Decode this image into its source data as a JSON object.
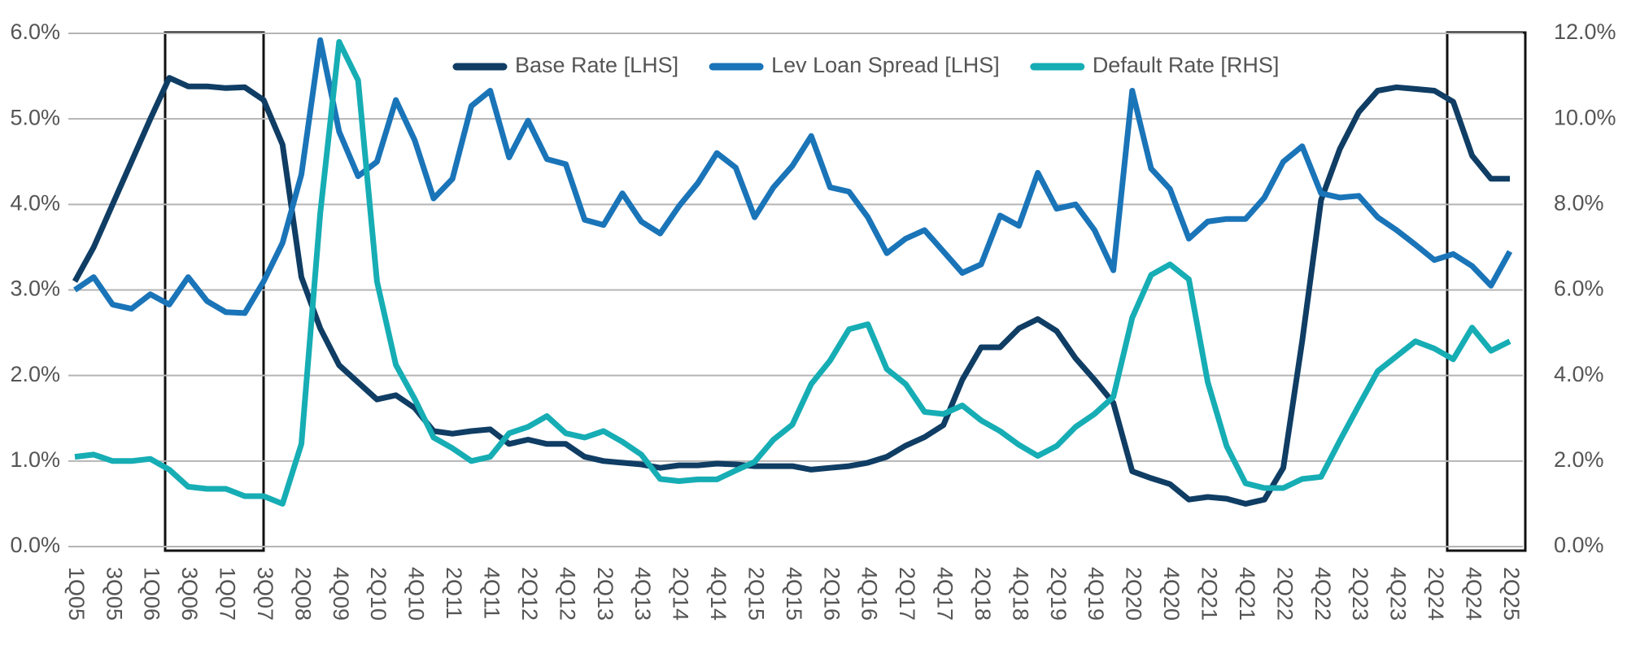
{
  "chart_data": {
    "type": "line",
    "categories": [
      "1Q05",
      null,
      "3Q05",
      null,
      "1Q06",
      null,
      "3Q06",
      null,
      "1Q07",
      null,
      "3Q07",
      null,
      "2Q08",
      null,
      "4Q09",
      null,
      "2Q10",
      null,
      "4Q10",
      null,
      "2Q11",
      null,
      "4Q11",
      null,
      "2Q12",
      null,
      "4Q12",
      null,
      "2Q13",
      null,
      "4Q13",
      null,
      "2Q14",
      null,
      "4Q14",
      null,
      "2Q15",
      null,
      "4Q15",
      null,
      "2Q16",
      null,
      "4Q16",
      null,
      "2Q17",
      null,
      "4Q17",
      null,
      "2Q18",
      null,
      "4Q18",
      null,
      "2Q19",
      null,
      "4Q19",
      null,
      "2Q20",
      null,
      "4Q20",
      null,
      "2Q21",
      null,
      "4Q21",
      null,
      "2Q22",
      null,
      "4Q22",
      null,
      "2Q23",
      null,
      "4Q23",
      null,
      "2Q24",
      null,
      "4Q24",
      null,
      "2Q25"
    ],
    "series": [
      {
        "name": "Base Rate [LHS]",
        "color": "#0f3d64",
        "values": [
          3.1,
          3.5,
          4.0,
          4.5,
          5.0,
          5.48,
          5.38,
          5.38,
          5.36,
          5.37,
          5.22,
          4.7,
          3.15,
          2.55,
          2.12,
          1.92,
          1.72,
          1.77,
          1.62,
          1.35,
          1.32,
          1.35,
          1.37,
          1.2,
          1.25,
          1.2,
          1.2,
          1.05,
          1.0,
          0.98,
          0.96,
          0.92,
          0.95,
          0.95,
          0.97,
          0.96,
          0.94,
          0.94,
          0.94,
          0.9,
          0.92,
          0.94,
          0.98,
          1.05,
          1.18,
          1.28,
          1.42,
          1.95,
          2.33,
          2.33,
          2.55,
          2.66,
          2.52,
          2.2,
          1.95,
          1.68,
          0.88,
          0.8,
          0.73,
          0.55,
          0.58,
          0.56,
          0.5,
          0.55,
          0.92,
          2.4,
          4.05,
          4.65,
          5.08,
          5.33,
          5.37,
          5.35,
          5.33,
          5.2,
          4.57,
          4.3,
          4.3
        ]
      },
      {
        "name": "Lev Loan Spread [LHS]",
        "color": "#1a74b8",
        "values": [
          3.0,
          3.15,
          2.83,
          2.78,
          2.95,
          2.83,
          3.15,
          2.87,
          2.74,
          2.73,
          3.1,
          3.55,
          4.35,
          5.92,
          4.85,
          4.33,
          4.5,
          5.22,
          4.75,
          4.07,
          4.3,
          5.15,
          5.33,
          4.55,
          4.98,
          4.53,
          4.47,
          3.82,
          3.76,
          4.13,
          3.8,
          3.66,
          3.98,
          4.25,
          4.6,
          4.43,
          3.85,
          4.2,
          4.45,
          4.8,
          4.2,
          4.15,
          3.85,
          3.43,
          3.6,
          3.7,
          3.45,
          3.2,
          3.3,
          3.87,
          3.75,
          4.37,
          3.95,
          4.0,
          3.7,
          3.23,
          5.33,
          4.42,
          4.18,
          3.6,
          3.8,
          3.83,
          3.83,
          4.08,
          4.5,
          4.68,
          4.13,
          4.08,
          4.1,
          3.85,
          3.7,
          3.53,
          3.35,
          3.42,
          3.28,
          3.05,
          3.45
        ]
      },
      {
        "name": "Default Rate [RHS]",
        "color": "#16adb4",
        "axis": "y2",
        "values": [
          2.1,
          2.15,
          2.0,
          2.0,
          2.05,
          1.8,
          1.4,
          1.35,
          1.35,
          1.18,
          1.18,
          1.0,
          2.4,
          7.8,
          11.8,
          10.9,
          6.2,
          4.25,
          3.45,
          2.55,
          2.3,
          2.0,
          2.1,
          2.65,
          2.8,
          3.05,
          2.65,
          2.55,
          2.7,
          2.45,
          2.15,
          1.58,
          1.53,
          1.57,
          1.57,
          1.78,
          1.98,
          2.5,
          2.85,
          3.8,
          4.35,
          5.08,
          5.2,
          4.15,
          3.8,
          3.15,
          3.1,
          3.3,
          2.95,
          2.7,
          2.38,
          2.12,
          2.35,
          2.8,
          3.1,
          3.5,
          5.35,
          6.35,
          6.6,
          6.25,
          3.85,
          2.35,
          1.48,
          1.37,
          1.37,
          1.58,
          1.63,
          2.48,
          3.3,
          4.1,
          4.45,
          4.8,
          4.63,
          4.38,
          5.12,
          4.58,
          4.8
        ]
      }
    ],
    "ylim": [
      0,
      6
    ],
    "yticks": [
      {
        "value": 0,
        "label": "0.0%"
      },
      {
        "value": 1,
        "label": "1.0%"
      },
      {
        "value": 2,
        "label": "2.0%"
      },
      {
        "value": 3,
        "label": "3.0%"
      },
      {
        "value": 4,
        "label": "4.0%"
      },
      {
        "value": 5,
        "label": "5.0%"
      },
      {
        "value": 6,
        "label": "6.0%"
      }
    ],
    "y2lim": [
      0,
      12
    ],
    "y2ticks": [
      {
        "value": 0,
        "label": "0.0%"
      },
      {
        "value": 2,
        "label": "2.0%"
      },
      {
        "value": 4,
        "label": "4.0%"
      },
      {
        "value": 6,
        "label": "6.0%"
      },
      {
        "value": 8,
        "label": "8.0%"
      },
      {
        "value": 10,
        "label": "10.0%"
      },
      {
        "value": 12,
        "label": "12.0%"
      }
    ],
    "grid": true,
    "legend": "top"
  }
}
